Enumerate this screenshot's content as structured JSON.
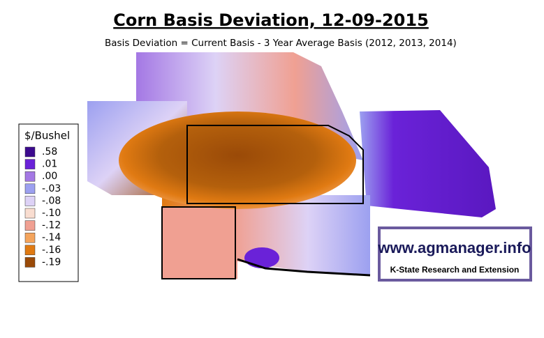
{
  "title": "Corn Basis Deviation, 12-09-2015",
  "subtitle": "Basis Deviation = Current Basis - 3 Year Average Basis (2012, 2013, 2014)",
  "legend": {
    "title": "$/Bushel",
    "items": [
      {
        "label": ".58",
        "color": "#3c0a8e"
      },
      {
        "label": ".01",
        "color": "#6a22d8"
      },
      {
        "label": ".00",
        "color": "#a478e4"
      },
      {
        "label": "-.03",
        "color": "#9ca0f0"
      },
      {
        "label": "-.08",
        "color": "#ddd2f6"
      },
      {
        "label": "-.10",
        "color": "#f9ddd0"
      },
      {
        "label": "-.12",
        "color": "#f0a092"
      },
      {
        "label": "-.14",
        "color": "#f4a45c"
      },
      {
        "label": "-.16",
        "color": "#e07a12"
      },
      {
        "label": "-.19",
        "color": "#9a4a08"
      }
    ]
  },
  "logo": {
    "url": "www.agmanager.info",
    "org": "K-State Research and Extension"
  }
}
